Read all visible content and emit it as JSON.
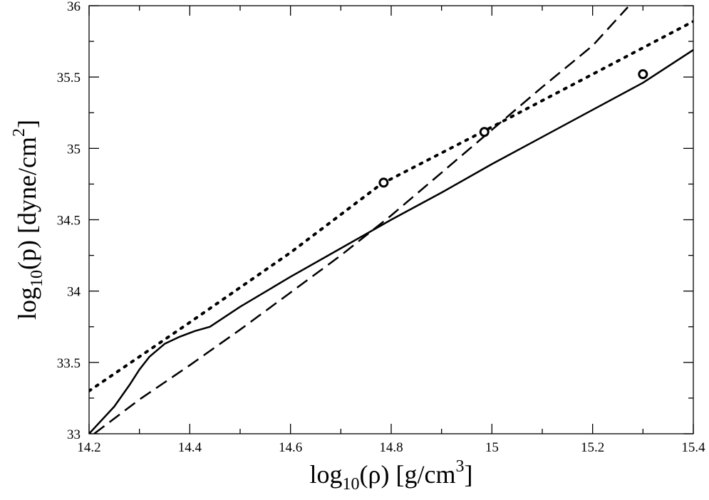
{
  "chart_data": {
    "type": "line",
    "xlabel": {
      "prefix": "log",
      "sub": "10",
      "middle": "(ρ) [g/cm",
      "sup": "3",
      "suffix": "]"
    },
    "ylabel": {
      "prefix": "log",
      "sub": "10",
      "middle": "(p) [dyne/cm",
      "sup": "2",
      "suffix": "]"
    },
    "xlim": [
      14.2,
      15.4
    ],
    "ylim": [
      33,
      36
    ],
    "x_ticks": [
      14.2,
      14.4,
      14.6,
      14.8,
      15.0,
      15.2,
      15.4
    ],
    "x_tick_labels": [
      "14.2",
      "14.4",
      "14.6",
      "14.8",
      "15",
      "15.2",
      "15.4"
    ],
    "y_ticks": [
      33,
      33.5,
      34,
      34.5,
      35,
      35.5,
      36
    ],
    "y_tick_labels": [
      "33",
      "33.5",
      "34",
      "34.5",
      "35",
      "35.5",
      "36"
    ],
    "grid": false,
    "legend": "none",
    "series": [
      {
        "style": "solid",
        "color": "#000000",
        "points": [
          [
            14.2,
            33.0
          ],
          [
            14.25,
            33.19
          ],
          [
            14.28,
            33.34
          ],
          [
            14.3,
            33.45
          ],
          [
            14.32,
            33.54
          ],
          [
            14.35,
            33.63
          ],
          [
            14.38,
            33.68
          ],
          [
            14.41,
            33.72
          ],
          [
            14.44,
            33.75
          ],
          [
            14.5,
            33.89
          ],
          [
            14.6,
            34.1
          ],
          [
            14.7,
            34.3
          ],
          [
            14.8,
            34.5
          ],
          [
            14.9,
            34.69
          ],
          [
            15.0,
            34.89
          ],
          [
            15.1,
            35.08
          ],
          [
            15.2,
            35.27
          ],
          [
            15.3,
            35.46
          ],
          [
            15.4,
            35.69
          ]
        ]
      },
      {
        "style": "dashed",
        "color": "#000000",
        "points": [
          [
            14.21,
            33.0
          ],
          [
            14.3,
            33.24
          ],
          [
            14.4,
            33.48
          ],
          [
            14.5,
            33.73
          ],
          [
            14.6,
            33.99
          ],
          [
            14.7,
            34.25
          ],
          [
            14.8,
            34.53
          ],
          [
            14.9,
            34.83
          ],
          [
            15.0,
            35.13
          ],
          [
            15.1,
            35.43
          ],
          [
            15.2,
            35.72
          ],
          [
            15.27,
            35.99
          ]
        ]
      },
      {
        "style": "dotted",
        "color": "#000000",
        "points": [
          [
            14.2,
            33.3
          ],
          [
            14.4,
            33.78
          ],
          [
            14.6,
            34.27
          ],
          [
            14.78,
            34.75
          ],
          [
            15.0,
            35.15
          ],
          [
            15.2,
            35.52
          ],
          [
            15.4,
            35.89
          ]
        ]
      }
    ],
    "markers": [
      {
        "x": 14.785,
        "y": 34.76,
        "shape": "open-circle"
      },
      {
        "x": 14.985,
        "y": 35.115,
        "shape": "open-circle"
      },
      {
        "x": 15.3,
        "y": 35.52,
        "shape": "open-circle"
      }
    ]
  }
}
